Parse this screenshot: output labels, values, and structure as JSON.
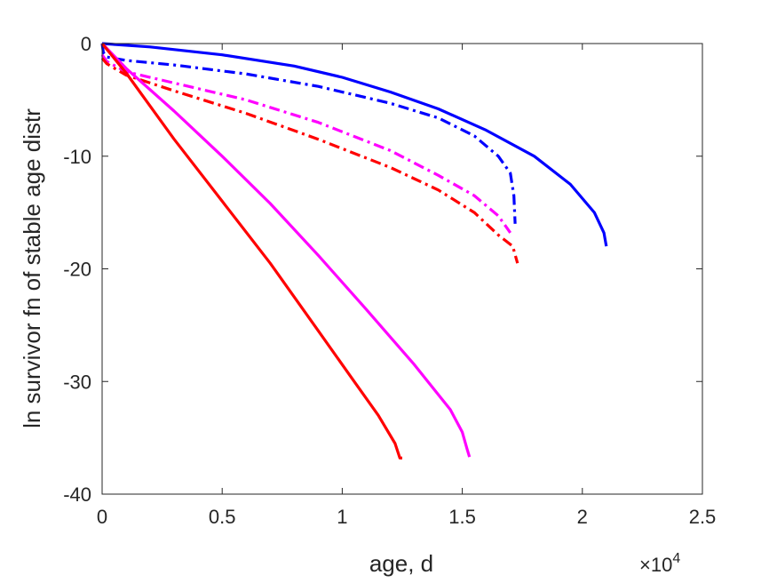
{
  "chart_data": {
    "type": "line",
    "title": "",
    "xlabel": "age, d",
    "ylabel": "ln survivor fn of stable age distr",
    "x_exponent_label": "×10",
    "x_exponent_power": "4",
    "xlim": [
      0,
      25000
    ],
    "ylim": [
      -40,
      0
    ],
    "xticks": [
      0,
      5000,
      10000,
      15000,
      20000,
      25000
    ],
    "xtick_labels": [
      "0",
      "0.5",
      "1",
      "1.5",
      "2",
      "2.5"
    ],
    "yticks": [
      0,
      -10,
      -20,
      -30,
      -40
    ],
    "ytick_labels": [
      "0",
      "-10",
      "-20",
      "-30",
      "-40"
    ],
    "grid": false,
    "legend": "none",
    "series": [
      {
        "color": "#0000FF",
        "style": "solid",
        "points": [
          [
            0,
            0
          ],
          [
            2000,
            -0.3
          ],
          [
            5000,
            -1.0
          ],
          [
            8000,
            -2.0
          ],
          [
            10000,
            -3.0
          ],
          [
            12000,
            -4.3
          ],
          [
            14000,
            -5.8
          ],
          [
            16000,
            -7.7
          ],
          [
            18000,
            -10.0
          ],
          [
            19500,
            -12.5
          ],
          [
            20500,
            -15.0
          ],
          [
            20900,
            -16.8
          ],
          [
            21000,
            -18.0
          ]
        ]
      },
      {
        "color": "#0000FF",
        "style": "dashdot",
        "points": [
          [
            0,
            0
          ],
          [
            50,
            -0.8
          ],
          [
            200,
            -1.2
          ],
          [
            1000,
            -1.5
          ],
          [
            3000,
            -1.9
          ],
          [
            6000,
            -2.7
          ],
          [
            9000,
            -3.8
          ],
          [
            12000,
            -5.3
          ],
          [
            14000,
            -6.6
          ],
          [
            15500,
            -8.2
          ],
          [
            16500,
            -10.0
          ],
          [
            17000,
            -11.5
          ],
          [
            17150,
            -13.5
          ],
          [
            17200,
            -16.0
          ]
        ]
      },
      {
        "color": "#FF00FF",
        "style": "dashdot",
        "points": [
          [
            0,
            -1.0
          ],
          [
            200,
            -1.6
          ],
          [
            1000,
            -2.5
          ],
          [
            3000,
            -3.5
          ],
          [
            6000,
            -5.0
          ],
          [
            9000,
            -7.0
          ],
          [
            12000,
            -9.5
          ],
          [
            14000,
            -11.7
          ],
          [
            15500,
            -13.5
          ],
          [
            16500,
            -15.3
          ],
          [
            17000,
            -16.8
          ]
        ]
      },
      {
        "color": "#FF0000",
        "style": "dashdot",
        "points": [
          [
            0,
            -1.3
          ],
          [
            200,
            -1.8
          ],
          [
            1000,
            -2.8
          ],
          [
            3000,
            -4.2
          ],
          [
            6000,
            -6.2
          ],
          [
            9000,
            -8.5
          ],
          [
            12000,
            -11.0
          ],
          [
            14000,
            -13.0
          ],
          [
            15500,
            -15.0
          ],
          [
            16500,
            -17.0
          ],
          [
            17100,
            -18.0
          ],
          [
            17300,
            -19.5
          ]
        ]
      },
      {
        "color": "#FF00FF",
        "style": "solid",
        "points": [
          [
            0,
            0
          ],
          [
            1000,
            -2.2
          ],
          [
            3000,
            -6.0
          ],
          [
            5000,
            -10.0
          ],
          [
            7000,
            -14.2
          ],
          [
            9000,
            -18.8
          ],
          [
            11000,
            -23.6
          ],
          [
            13000,
            -28.5
          ],
          [
            14500,
            -32.5
          ],
          [
            15000,
            -34.5
          ],
          [
            15200,
            -36.0
          ],
          [
            15300,
            -36.7
          ]
        ]
      },
      {
        "color": "#FF0000",
        "style": "solid",
        "points": [
          [
            0,
            0
          ],
          [
            1000,
            -2.6
          ],
          [
            3000,
            -8.5
          ],
          [
            5000,
            -14.0
          ],
          [
            7000,
            -19.5
          ],
          [
            9000,
            -25.5
          ],
          [
            10500,
            -30.0
          ],
          [
            11500,
            -33.0
          ],
          [
            12200,
            -35.5
          ],
          [
            12400,
            -36.8
          ],
          [
            12500,
            -36.8
          ]
        ]
      }
    ]
  }
}
